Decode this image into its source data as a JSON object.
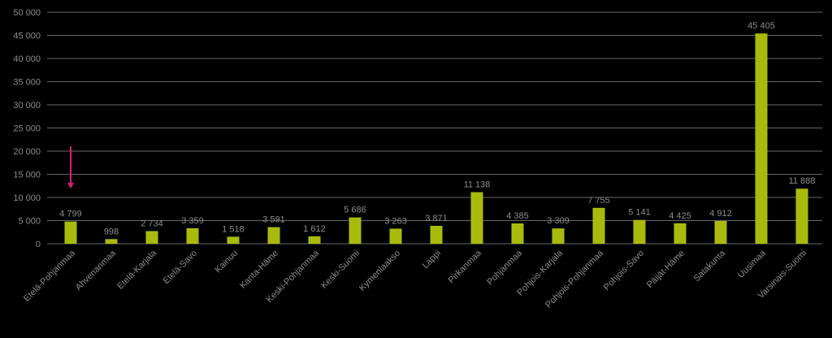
{
  "chart_data": {
    "type": "bar",
    "categories": [
      "Etelä-Pohjanmaa",
      "Ahvenanmaa",
      "Etelä-Karjala",
      "Etelä-Savo",
      "Kainuu",
      "Kanta-Häme",
      "Keski-Pohjanmaa",
      "Keski-Suomi",
      "Kymenlaakso",
      "Lappi",
      "Pirkanmaa",
      "Pohjanmaa",
      "Pohjois-Karjala",
      "Pohjois-Pohjanmaa",
      "Pohjois-Savo",
      "Päijät-Häme",
      "Satakunta",
      "Uusimaa",
      "Varsinais-Suomi"
    ],
    "values": [
      4799,
      998,
      2734,
      3359,
      1518,
      3591,
      1612,
      5686,
      3263,
      3871,
      11138,
      4385,
      3309,
      7755,
      5141,
      4425,
      4912,
      45405,
      11888
    ],
    "data_labels": [
      "4 799",
      "998",
      "2 734",
      "3 359",
      "1 518",
      "3 591",
      "1 612",
      "5 686",
      "3 263",
      "3 871",
      "11 138",
      "4 385",
      "3 309",
      "7 755",
      "5 141",
      "4 425",
      "4 912",
      "45 405",
      "11 888"
    ],
    "y_ticks": [
      0,
      5000,
      10000,
      15000,
      20000,
      25000,
      30000,
      35000,
      40000,
      45000,
      50000
    ],
    "y_tick_labels": [
      "0",
      "5 000",
      "10 000",
      "15 000",
      "20 000",
      "25 000",
      "30 000",
      "35 000",
      "40 000",
      "45 000",
      "50 000"
    ],
    "ylim": [
      0,
      50000
    ],
    "grid": true,
    "legend": "none",
    "bar_color": "#a8bb0c",
    "grid_color": "#8a8a8a",
    "text_color": "#8c8c8c",
    "annotation": {
      "type": "arrow",
      "color": "#e0197d",
      "target_category": "Etelä-Pohjanmaa"
    }
  }
}
